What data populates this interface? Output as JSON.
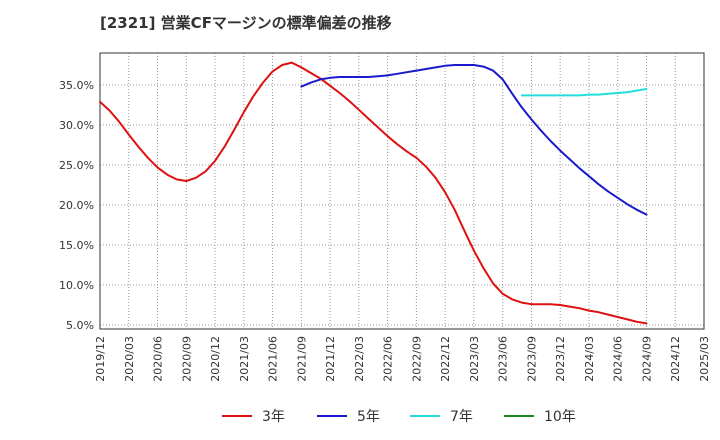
{
  "title": "[2321]  営業CFマージンの標準偏差の推移",
  "chart_data": {
    "type": "line",
    "title": "[2321]  営業CFマージンの標準偏差の推移",
    "xlabel": "",
    "ylabel": "",
    "x_ticks": [
      "2019/12",
      "2020/03",
      "2020/06",
      "2020/09",
      "2020/12",
      "2021/03",
      "2021/06",
      "2021/09",
      "2021/12",
      "2022/03",
      "2022/06",
      "2022/09",
      "2022/12",
      "2023/03",
      "2023/06",
      "2023/09",
      "2023/12",
      "2024/03",
      "2024/06",
      "2024/09",
      "2024/12",
      "2025/03"
    ],
    "y_ticks": [
      "5.0%",
      "10.0%",
      "15.0%",
      "20.0%",
      "25.0%",
      "30.0%",
      "35.0%"
    ],
    "ylim": [
      4.5,
      39.0
    ],
    "grid": true,
    "legend_position": "bottom",
    "series": [
      {
        "name": "3年",
        "color": "#dd1111",
        "x": [
          "2019/12",
          "2020/01",
          "2020/02",
          "2020/03",
          "2020/04",
          "2020/05",
          "2020/06",
          "2020/07",
          "2020/08",
          "2020/09",
          "2020/10",
          "2020/11",
          "2020/12",
          "2021/01",
          "2021/02",
          "2021/03",
          "2021/04",
          "2021/05",
          "2021/06",
          "2021/07",
          "2021/08",
          "2021/09",
          "2021/10",
          "2021/11",
          "2021/12",
          "2022/01",
          "2022/02",
          "2022/03",
          "2022/04",
          "2022/05",
          "2022/06",
          "2022/07",
          "2022/08",
          "2022/09",
          "2022/10",
          "2022/11",
          "2022/12",
          "2023/01",
          "2023/02",
          "2023/03",
          "2023/04",
          "2023/05",
          "2023/06",
          "2023/07",
          "2023/08",
          "2023/09",
          "2023/10",
          "2023/11",
          "2023/12",
          "2024/01",
          "2024/02",
          "2024/03",
          "2024/04",
          "2024/05",
          "2024/06",
          "2024/07",
          "2024/08",
          "2024/09"
        ],
        "values": [
          32.9,
          31.8,
          30.4,
          28.8,
          27.3,
          25.9,
          24.7,
          23.8,
          23.2,
          23.0,
          23.4,
          24.2,
          25.5,
          27.3,
          29.4,
          31.6,
          33.6,
          35.3,
          36.7,
          37.5,
          37.8,
          37.2,
          36.5,
          35.8,
          34.9,
          34.0,
          33.0,
          31.9,
          30.8,
          29.7,
          28.6,
          27.6,
          26.7,
          25.9,
          24.8,
          23.4,
          21.6,
          19.4,
          16.8,
          14.3,
          12.1,
          10.2,
          8.9,
          8.2,
          7.8,
          7.6,
          7.6,
          7.6,
          7.5,
          7.3,
          7.1,
          6.8,
          6.6,
          6.3,
          6.0,
          5.7,
          5.4,
          5.2
        ],
        "values_note": ""
      },
      {
        "name": "5年",
        "color": "#1a1acc",
        "x": [
          "2021/09",
          "2021/10",
          "2021/11",
          "2021/12",
          "2022/01",
          "2022/02",
          "2022/03",
          "2022/04",
          "2022/05",
          "2022/06",
          "2022/07",
          "2022/08",
          "2022/09",
          "2022/10",
          "2022/11",
          "2022/12",
          "2023/01",
          "2023/02",
          "2023/03",
          "2023/04",
          "2023/05",
          "2023/06",
          "2023/07",
          "2023/08",
          "2023/09",
          "2023/10",
          "2023/11",
          "2023/12",
          "2024/01",
          "2024/02",
          "2024/03",
          "2024/04",
          "2024/05",
          "2024/06",
          "2024/07",
          "2024/08",
          "2024/09"
        ],
        "values": [
          34.8,
          35.3,
          35.7,
          35.9,
          36.0,
          36.0,
          36.0,
          36.0,
          36.1,
          36.2,
          36.4,
          36.6,
          36.8,
          37.0,
          37.2,
          37.4,
          37.5,
          37.5,
          37.5,
          37.3,
          36.8,
          35.7,
          33.9,
          32.2,
          30.7,
          29.3,
          28.0,
          26.8,
          25.7,
          24.6,
          23.6,
          22.6,
          21.7,
          20.9,
          20.1,
          19.4,
          18.8
        ]
      },
      {
        "name": "7年",
        "color": "#22dddd",
        "x": [
          "2023/08",
          "2023/09",
          "2023/10",
          "2023/11",
          "2023/12",
          "2024/01",
          "2024/02",
          "2024/03",
          "2024/04",
          "2024/05",
          "2024/06",
          "2024/07",
          "2024/08",
          "2024/09"
        ],
        "values": [
          33.7,
          33.7,
          33.7,
          33.7,
          33.7,
          33.7,
          33.7,
          33.8,
          33.8,
          33.9,
          34.0,
          34.1,
          34.3,
          34.5
        ]
      },
      {
        "name": "10年",
        "color": "#1a8a1a",
        "x": [],
        "values": []
      }
    ]
  }
}
